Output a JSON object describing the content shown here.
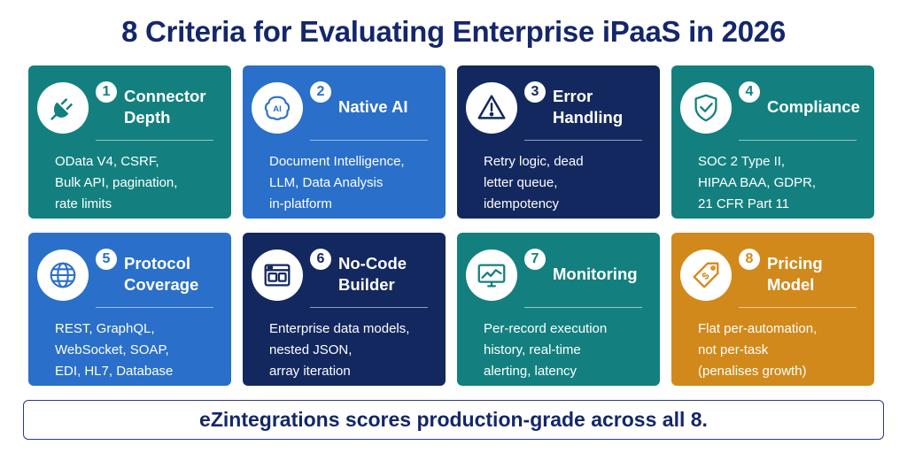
{
  "title": "8 Criteria for Evaluating Enterprise iPaaS in 2026",
  "criteria": [
    {
      "number": "1",
      "title": "Connector Depth",
      "icon": "plug-icon",
      "color": "#13807f",
      "lines": [
        "OData V4, CSRF,",
        "Bulk API, pagination,",
        "rate limits"
      ]
    },
    {
      "number": "2",
      "title": "Native AI",
      "icon": "ai-brain-icon",
      "color": "#2a6fc9",
      "lines": [
        "Document Intelligence,",
        "LLM, Data Analysis",
        "in-platform"
      ]
    },
    {
      "number": "3",
      "title": "Error Handling",
      "icon": "warning-triangle-icon",
      "color": "#13285e",
      "lines": [
        "Retry logic, dead",
        "letter queue,",
        "idempotency"
      ]
    },
    {
      "number": "4",
      "title": "Compliance",
      "icon": "shield-check-icon",
      "color": "#13807f",
      "lines": [
        "SOC 2 Type II,",
        "HIPAA BAA, GDPR,",
        "21 CFR Part 11"
      ]
    },
    {
      "number": "5",
      "title": "Protocol Coverage",
      "icon": "globe-icon",
      "color": "#2a6fc9",
      "lines": [
        "REST, GraphQL,",
        "WebSocket, SOAP,",
        "EDI, HL7, Database"
      ]
    },
    {
      "number": "6",
      "title": "No-Code Builder",
      "icon": "builder-window-icon",
      "color": "#13285e",
      "lines": [
        "Enterprise data models,",
        "nested JSON,",
        "array iteration"
      ]
    },
    {
      "number": "7",
      "title": "Monitoring",
      "icon": "monitor-chart-icon",
      "color": "#13807f",
      "lines": [
        "Per-record execution",
        "history, real-time",
        "alerting, latency"
      ]
    },
    {
      "number": "8",
      "title": "Pricing Model",
      "icon": "price-tag-icon",
      "color": "#d1891b",
      "lines": [
        "Flat per-automation,",
        "not per-task",
        "(penalises growth)"
      ]
    }
  ],
  "banner": "eZintegrations scores production-grade across all 8."
}
